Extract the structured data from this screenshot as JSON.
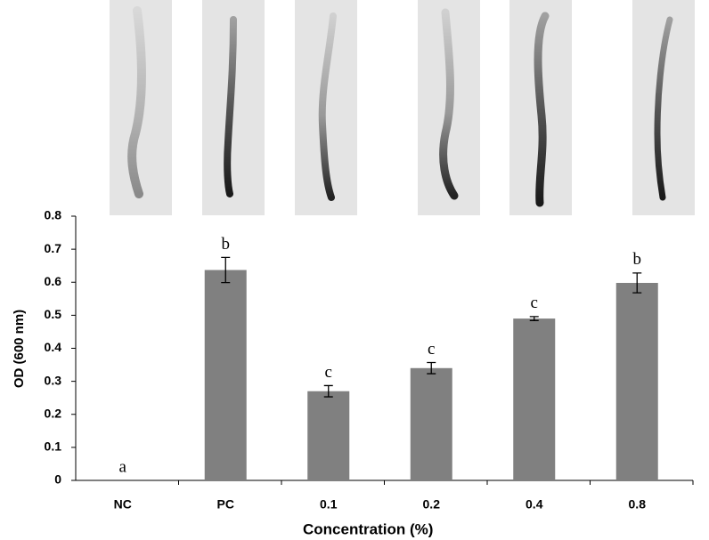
{
  "chart_data": {
    "type": "bar",
    "x_label": "Concentration (%)",
    "y_label": "OD (600 nm)",
    "categories": [
      "NC",
      "PC",
      "0.1",
      "0.2",
      "0.4",
      "0.8"
    ],
    "values": [
      0,
      0.637,
      0.27,
      0.34,
      0.49,
      0.598
    ],
    "errors": [
      null,
      0.038,
      0.017,
      0.017,
      0.006,
      0.03
    ],
    "significance": [
      "a",
      "b",
      "c",
      "c",
      "c",
      "b"
    ],
    "color": "#808080",
    "ylim": [
      0,
      0.8
    ],
    "yticks": [
      0,
      0.1,
      0.2,
      0.3,
      0.4,
      0.5,
      0.6,
      0.7,
      0.8
    ],
    "grid": false
  }
}
